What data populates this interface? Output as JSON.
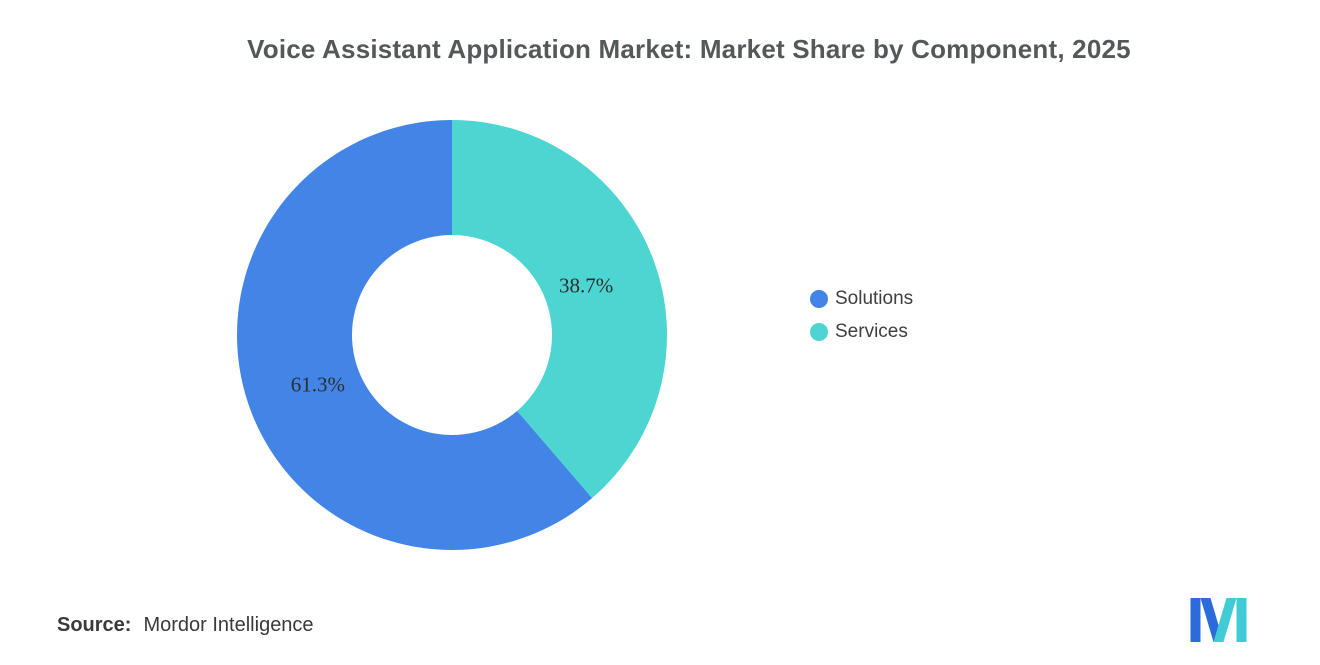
{
  "title": "Voice Assistant Application Market: Market Share by Component, 2025",
  "chart_data": {
    "type": "pie",
    "subtype": "donut",
    "title": "Voice Assistant Application Market: Market Share by Component, 2025",
    "labels": [
      "Solutions",
      "Services"
    ],
    "values": [
      61.3,
      38.7
    ],
    "data_labels": [
      "61.3%",
      "38.7%"
    ],
    "colors": [
      "#4285E6",
      "#4DD5D2"
    ],
    "start_angle_deg": 139.32,
    "direction": "clockwise-from-top",
    "inner_radius_ratio": 0.465,
    "legend_position": "right",
    "units": "percent"
  },
  "legend": {
    "items": [
      {
        "label": "Solutions",
        "color": "#4285E6"
      },
      {
        "label": "Services",
        "color": "#4DD5D2"
      }
    ]
  },
  "source": {
    "label": "Source:",
    "value": "Mordor Intelligence"
  },
  "logo": {
    "name": "mordor-intelligence-logo",
    "blue": "#2D6BDB",
    "teal": "#41CBD7"
  }
}
